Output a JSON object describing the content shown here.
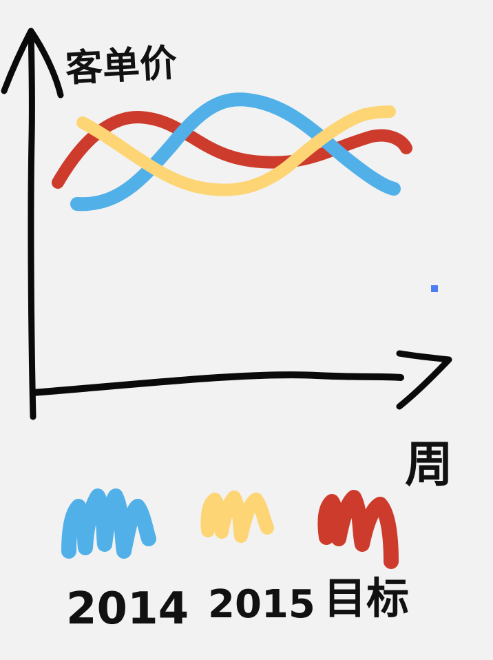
{
  "chart_data": {
    "type": "line",
    "title": "",
    "xlabel": "周",
    "ylabel": "客单价",
    "grid": false,
    "legend_position": "bottom",
    "series": [
      {
        "name": "2014",
        "color": "#52b0e8",
        "style": "wave-rising-then-falling"
      },
      {
        "name": "2015",
        "color": "#fdd575",
        "style": "wave-falling-then-rising"
      },
      {
        "name": "目标",
        "color": "#cd3b2c",
        "style": "wave-low-high-low-high"
      }
    ]
  },
  "marker_color": "#4d7ff0"
}
